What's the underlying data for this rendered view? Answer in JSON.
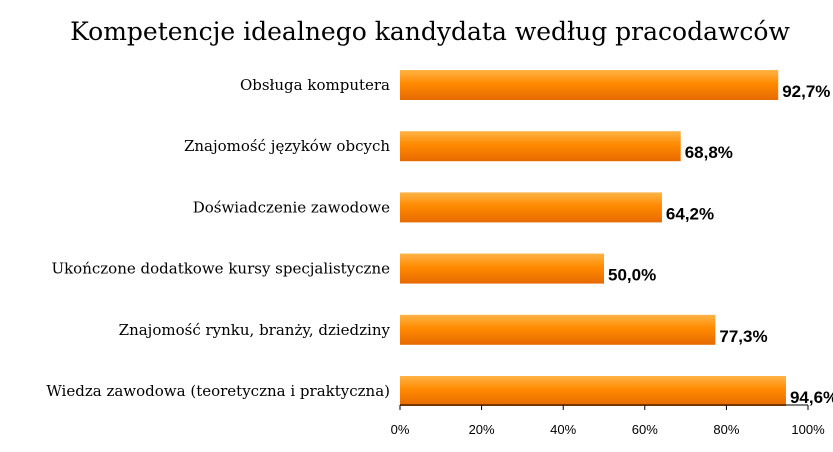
{
  "chart_data": {
    "type": "bar",
    "orientation": "horizontal",
    "title": "Kompetencje idealnego kandydata według pracodawców",
    "categories": [
      "Obsługa komputera",
      "Znajomość języków obcych",
      "Doświadczenie zawodowe",
      "Ukończone dodatkowe kursy specjalistyczne",
      "Znajomość rynku, branży, dziedziny",
      "Wiedza zawodowa (teoretyczna i praktyczna)"
    ],
    "values": [
      92.7,
      68.8,
      64.2,
      50.0,
      77.3,
      94.6
    ],
    "value_labels": [
      "92,7%",
      "68,8%",
      "64,2%",
      "50,0%",
      "77,3%",
      "94,6%"
    ],
    "xlim": [
      0,
      100
    ],
    "x_ticks": [
      "0%",
      "20%",
      "40%",
      "60%",
      "80%",
      "100%"
    ],
    "grid": false,
    "legend": "none",
    "bar_color": "#ff8000"
  }
}
